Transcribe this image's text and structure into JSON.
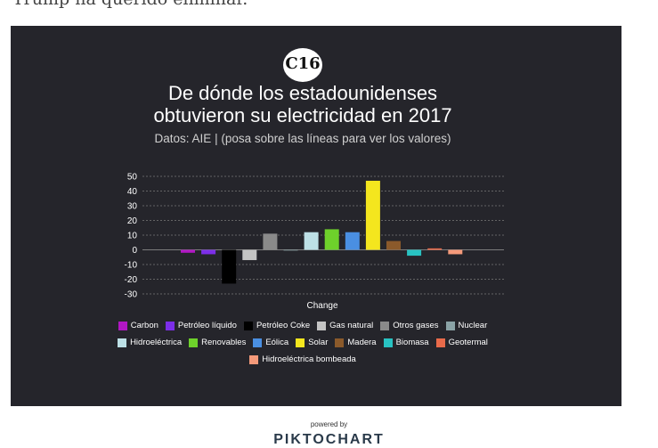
{
  "page": {
    "intro_text": "Trump ha querido eliminar.",
    "powered_by": "powered by",
    "brand": "PIKTOCHART"
  },
  "logo": {
    "text": "C16"
  },
  "chart_data": {
    "type": "bar",
    "title_line1": "De dónde los estadounidenses",
    "title_line2": "obtuvieron su electricidad en 2017",
    "subtitle": "Datos: AIE |  (posa sobre las líneas para ver los valores)",
    "xlabel": "Change",
    "ylabel": "",
    "ylim": [
      -30,
      50
    ],
    "yticks": [
      -30,
      -20,
      -10,
      0,
      10,
      20,
      30,
      40,
      50
    ],
    "grid": true,
    "legend_position": "bottom",
    "series": [
      {
        "name": "Carbon",
        "value": -2,
        "color": "#b117c4"
      },
      {
        "name": "Petróleo líquido",
        "value": -3,
        "color": "#7c2ee8"
      },
      {
        "name": "Petróleo Coke",
        "value": -23,
        "color": "#000000"
      },
      {
        "name": "Gas natural",
        "value": -7,
        "color": "#c4c4c4"
      },
      {
        "name": "Otros gases",
        "value": 11,
        "color": "#8a8a8a"
      },
      {
        "name": "Nuclear",
        "value": 0,
        "color": "#8aa3a6"
      },
      {
        "name": "Hidroeléctrica",
        "value": 12,
        "color": "#bde0e6"
      },
      {
        "name": "Renovables",
        "value": 14,
        "color": "#6ed12b"
      },
      {
        "name": "Eólica",
        "value": 12,
        "color": "#4a8fe2"
      },
      {
        "name": "Solar",
        "value": 47,
        "color": "#f4e61e"
      },
      {
        "name": "Madera",
        "value": 6,
        "color": "#8b5a2b"
      },
      {
        "name": "Biomasa",
        "value": -4,
        "color": "#28c2c2"
      },
      {
        "name": "Geotermal",
        "value": 1,
        "color": "#e86a4a"
      },
      {
        "name": "Hidroeléctrica bombeada",
        "value": -3,
        "color": "#f59a7a"
      }
    ],
    "legend_rows": [
      [
        0,
        1,
        2,
        3,
        4,
        5
      ],
      [
        6,
        7,
        8,
        9,
        10,
        11,
        12
      ],
      [
        13
      ]
    ]
  }
}
